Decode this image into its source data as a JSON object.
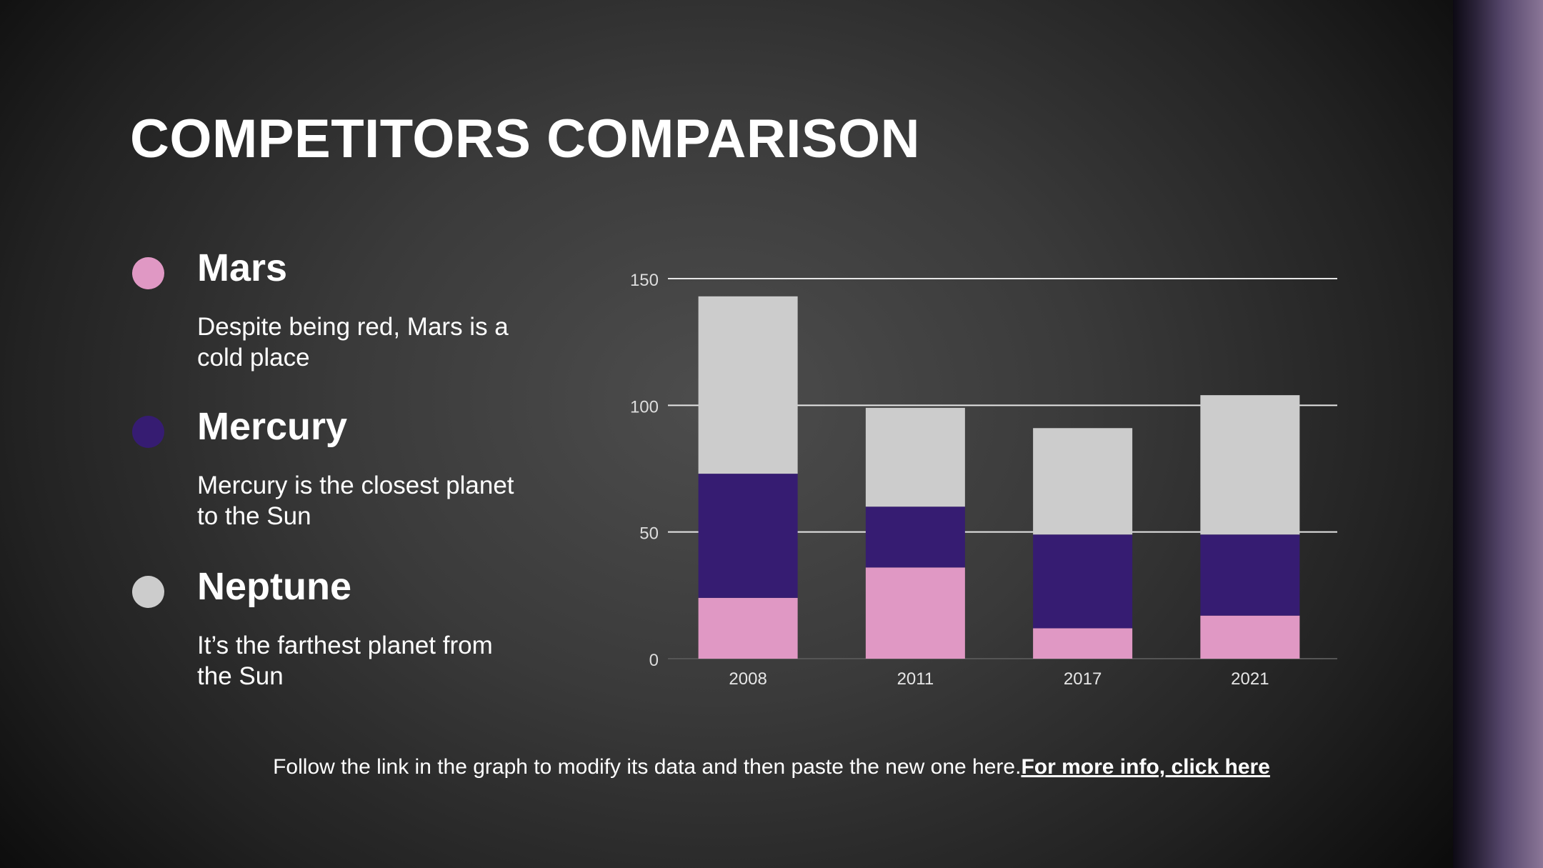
{
  "slide": {
    "title": "COMPETITORS COMPARISON",
    "footer_text": "Follow the link in the graph to modify its data and then paste the new one here.",
    "footer_link": "For more info, click here"
  },
  "legend": [
    {
      "name": "Mars",
      "description": "Despite being red, Mars is a cold place",
      "color": "#e098c4"
    },
    {
      "name": "Mercury",
      "description": "Mercury is the closest planet to the Sun",
      "color": "#361c72"
    },
    {
      "name": "Neptune",
      "description": "It’s the farthest planet from the Sun",
      "color": "#cccccc"
    }
  ],
  "chart_data": {
    "type": "bar",
    "stacked": true,
    "categories": [
      "2008",
      "2011",
      "2017",
      "2021"
    ],
    "series": [
      {
        "name": "Mars",
        "color": "#e098c4",
        "values": [
          24,
          36,
          12,
          17
        ]
      },
      {
        "name": "Mercury",
        "color": "#361c72",
        "values": [
          49,
          24,
          37,
          32
        ]
      },
      {
        "name": "Neptune",
        "color": "#cccccc",
        "values": [
          70,
          39,
          42,
          55
        ]
      }
    ],
    "ylim": [
      0,
      150
    ],
    "yticks": [
      0,
      50,
      100,
      150
    ],
    "grid": true
  }
}
